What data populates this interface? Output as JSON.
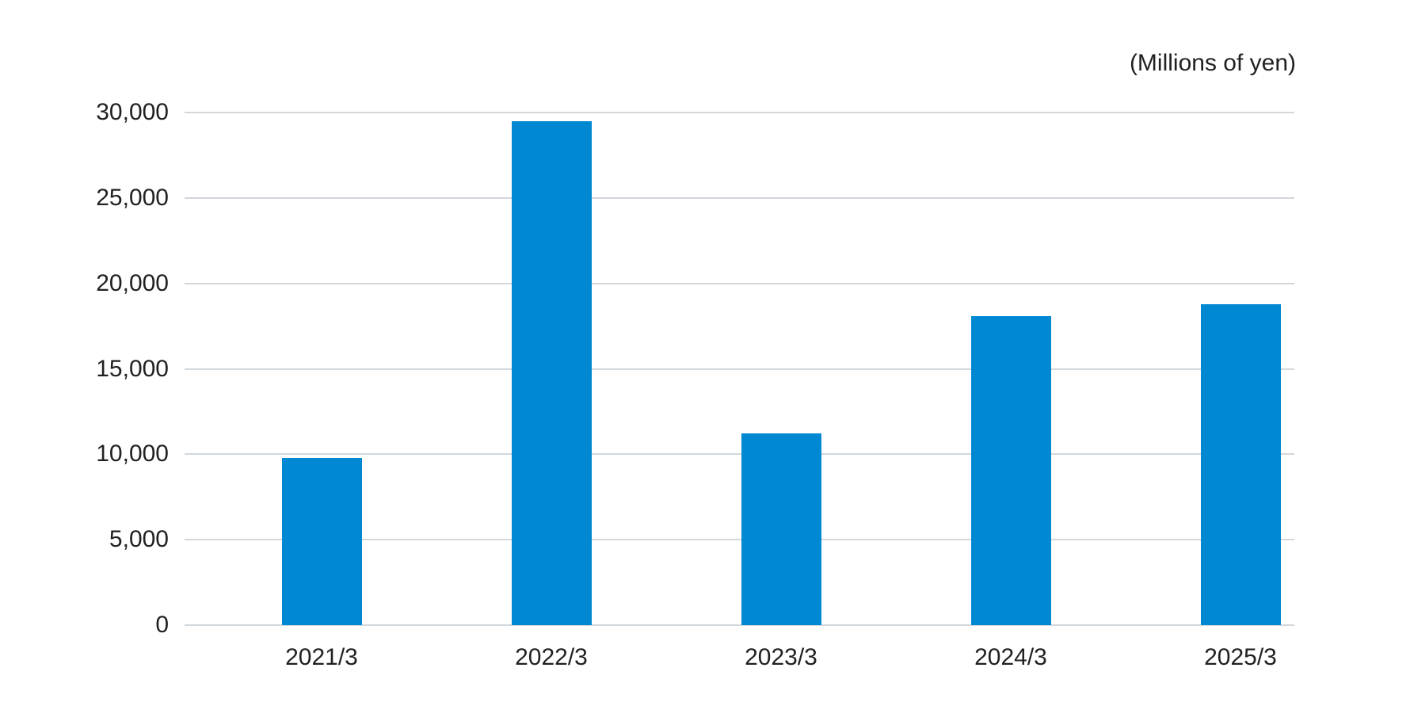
{
  "chart_data": {
    "type": "bar",
    "title": "",
    "unit_label": "(Millions of yen)",
    "categories": [
      "2021/3",
      "2022/3",
      "2023/3",
      "2024/3",
      "2025/3"
    ],
    "values": [
      9800,
      29500,
      11200,
      18100,
      18800
    ],
    "xlabel": "",
    "ylabel": "",
    "ylim": [
      0,
      30000
    ],
    "ytick_interval": 5000,
    "ytick_labels": [
      "0",
      "5,000",
      "10,000",
      "15,000",
      "20,000",
      "25,000",
      "30,000"
    ],
    "grid": true,
    "legend": "none",
    "colors": {
      "bar": "#0089d2",
      "gridline": "#d2d7dc",
      "text": "#212121",
      "background": "#ffffff"
    }
  }
}
